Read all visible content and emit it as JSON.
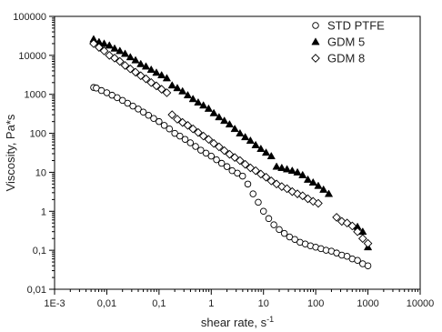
{
  "chart_data": {
    "type": "scatter",
    "xscale": "log",
    "yscale": "log",
    "xlim": [
      0.001,
      10000
    ],
    "ylim": [
      0.01,
      100000
    ],
    "xlabel": "shear rate, s",
    "xlabel_sup": "-1",
    "ylabel": "Viscosity, Pa*s",
    "x_ticks": [
      {
        "value": 0.001,
        "label": "1E-3"
      },
      {
        "value": 0.01,
        "label": "0,01"
      },
      {
        "value": 0.1,
        "label": "0,1"
      },
      {
        "value": 1,
        "label": "1"
      },
      {
        "value": 10,
        "label": "10"
      },
      {
        "value": 100,
        "label": "100"
      },
      {
        "value": 1000,
        "label": "1000"
      },
      {
        "value": 10000,
        "label": "10000"
      }
    ],
    "y_ticks": [
      {
        "value": 0.01,
        "label": "0,01"
      },
      {
        "value": 0.1,
        "label": "0,1"
      },
      {
        "value": 1,
        "label": "1"
      },
      {
        "value": 10,
        "label": "10"
      },
      {
        "value": 100,
        "label": "100"
      },
      {
        "value": 1000,
        "label": "1000"
      },
      {
        "value": 10000,
        "label": "10000"
      },
      {
        "value": 100000,
        "label": "100000"
      }
    ],
    "grid": false,
    "legend_position": "top-right",
    "series": [
      {
        "name": "STD PTFE",
        "marker": "open-circle",
        "points": [
          [
            0.0056,
            1500
          ],
          [
            0.0063,
            1450
          ],
          [
            0.0079,
            1250
          ],
          [
            0.01,
            1100
          ],
          [
            0.0126,
            950
          ],
          [
            0.0158,
            820
          ],
          [
            0.02,
            700
          ],
          [
            0.025,
            590
          ],
          [
            0.0316,
            500
          ],
          [
            0.04,
            420
          ],
          [
            0.05,
            350
          ],
          [
            0.063,
            290
          ],
          [
            0.079,
            240
          ],
          [
            0.1,
            200
          ],
          [
            0.126,
            160
          ],
          [
            0.158,
            130
          ],
          [
            0.2,
            100
          ],
          [
            0.251,
            85
          ],
          [
            0.316,
            70
          ],
          [
            0.398,
            57
          ],
          [
            0.501,
            46
          ],
          [
            0.631,
            37
          ],
          [
            0.794,
            31
          ],
          [
            1.0,
            26
          ],
          [
            1.26,
            21
          ],
          [
            1.58,
            17
          ],
          [
            2.0,
            14
          ],
          [
            2.51,
            11
          ],
          [
            3.16,
            9.5
          ],
          [
            3.98,
            8
          ],
          [
            5.01,
            5
          ],
          [
            6.31,
            2.8
          ],
          [
            7.94,
            1.7
          ],
          [
            10.0,
            1.0
          ],
          [
            12.6,
            0.65
          ],
          [
            15.8,
            0.45
          ],
          [
            20.0,
            0.34
          ],
          [
            25.1,
            0.27
          ],
          [
            31.6,
            0.22
          ],
          [
            39.8,
            0.19
          ],
          [
            50.1,
            0.16
          ],
          [
            63.1,
            0.145
          ],
          [
            79.4,
            0.13
          ],
          [
            100,
            0.12
          ],
          [
            126,
            0.11
          ],
          [
            158,
            0.1
          ],
          [
            200,
            0.095
          ],
          [
            251,
            0.085
          ],
          [
            316,
            0.075
          ],
          [
            398,
            0.07
          ],
          [
            501,
            0.06
          ],
          [
            631,
            0.055
          ],
          [
            794,
            0.045
          ],
          [
            1000,
            0.04
          ]
        ]
      },
      {
        "name": "GDM 5",
        "marker": "filled-triangle",
        "points": [
          [
            0.0056,
            26000
          ],
          [
            0.0071,
            22000
          ],
          [
            0.0089,
            20000
          ],
          [
            0.0112,
            18000
          ],
          [
            0.0141,
            15000
          ],
          [
            0.0178,
            13000
          ],
          [
            0.0224,
            11000
          ],
          [
            0.0282,
            9000
          ],
          [
            0.0355,
            7500
          ],
          [
            0.0447,
            6000
          ],
          [
            0.0562,
            5200
          ],
          [
            0.0708,
            4300
          ],
          [
            0.0891,
            3600
          ],
          [
            0.112,
            3100
          ],
          [
            0.141,
            2600
          ],
          [
            0.178,
            1700
          ],
          [
            0.224,
            1450
          ],
          [
            0.282,
            1200
          ],
          [
            0.355,
            950
          ],
          [
            0.447,
            760
          ],
          [
            0.562,
            620
          ],
          [
            0.708,
            520
          ],
          [
            0.891,
            430
          ],
          [
            1.12,
            330
          ],
          [
            1.41,
            260
          ],
          [
            1.78,
            210
          ],
          [
            2.24,
            170
          ],
          [
            2.82,
            130
          ],
          [
            3.55,
            100
          ],
          [
            4.47,
            80
          ],
          [
            5.62,
            65
          ],
          [
            7.08,
            50
          ],
          [
            8.91,
            40
          ],
          [
            11.2,
            32
          ],
          [
            14.1,
            26
          ],
          [
            17.8,
            14
          ],
          [
            22.4,
            13
          ],
          [
            28.2,
            12
          ],
          [
            35.5,
            11
          ],
          [
            44.7,
            10
          ],
          [
            56.2,
            8.5
          ],
          [
            70.8,
            6.5
          ],
          [
            89.1,
            5.5
          ],
          [
            112,
            4.5
          ],
          [
            141,
            3.6
          ],
          [
            178,
            2.8
          ],
          [
            631,
            0.4
          ],
          [
            794,
            0.3
          ],
          [
            1000,
            0.12
          ]
        ]
      },
      {
        "name": "GDM 8",
        "marker": "open-diamond",
        "points": [
          [
            0.0056,
            20000
          ],
          [
            0.0071,
            16000
          ],
          [
            0.0089,
            13000
          ],
          [
            0.0112,
            10000
          ],
          [
            0.0141,
            8500
          ],
          [
            0.0178,
            7000
          ],
          [
            0.0224,
            5500
          ],
          [
            0.0282,
            4500
          ],
          [
            0.0355,
            3700
          ],
          [
            0.0447,
            3000
          ],
          [
            0.0562,
            2500
          ],
          [
            0.0708,
            2000
          ],
          [
            0.0891,
            1650
          ],
          [
            0.112,
            1350
          ],
          [
            0.141,
            1100
          ],
          [
            0.178,
            300
          ],
          [
            0.224,
            230
          ],
          [
            0.282,
            190
          ],
          [
            0.355,
            160
          ],
          [
            0.447,
            130
          ],
          [
            0.562,
            105
          ],
          [
            0.708,
            85
          ],
          [
            0.891,
            70
          ],
          [
            1.12,
            55
          ],
          [
            1.41,
            45
          ],
          [
            1.78,
            36
          ],
          [
            2.24,
            29
          ],
          [
            2.82,
            24
          ],
          [
            3.55,
            20
          ],
          [
            4.47,
            16
          ],
          [
            5.62,
            13
          ],
          [
            7.08,
            11
          ],
          [
            8.91,
            9
          ],
          [
            11.2,
            7.5
          ],
          [
            14.1,
            6
          ],
          [
            17.8,
            5
          ],
          [
            22.4,
            4.3
          ],
          [
            28.2,
            3.8
          ],
          [
            35.5,
            3.2
          ],
          [
            44.7,
            2.8
          ],
          [
            56.2,
            2.5
          ],
          [
            70.8,
            2.1
          ],
          [
            89.1,
            1.8
          ],
          [
            112,
            1.6
          ],
          [
            251,
            0.7
          ],
          [
            316,
            0.55
          ],
          [
            398,
            0.5
          ],
          [
            501,
            0.42
          ],
          [
            631,
            0.3
          ],
          [
            794,
            0.2
          ],
          [
            1000,
            0.15
          ]
        ]
      }
    ]
  }
}
